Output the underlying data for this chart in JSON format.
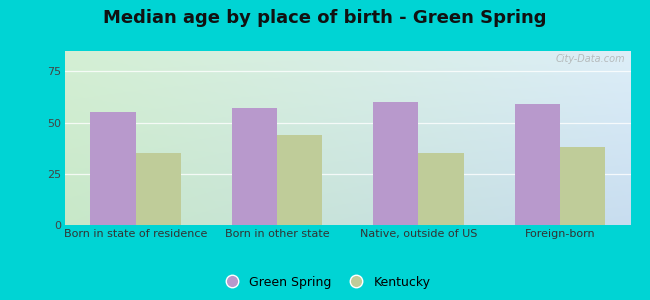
{
  "title": "Median age by place of birth - Green Spring",
  "categories": [
    "Born in state of residence",
    "Born in other state",
    "Native, outside of US",
    "Foreign-born"
  ],
  "green_spring_values": [
    55,
    57,
    60,
    59
  ],
  "kentucky_values": [
    35,
    44,
    35,
    38
  ],
  "bar_color_gs": "#b899cc",
  "bar_color_ky": "#bfcc99",
  "ylim": [
    0,
    85
  ],
  "yticks": [
    0,
    25,
    50,
    75
  ],
  "legend_labels": [
    "Green Spring",
    "Kentucky"
  ],
  "background_outer": "#00d4d4",
  "background_inner_topleft": "#d4efd4",
  "background_inner_topright": "#ddeef8",
  "background_inner_bottomleft": "#c8e8c8",
  "background_inner_bottomright": "#c8ddf0",
  "title_fontsize": 13,
  "tick_fontsize": 8,
  "legend_fontsize": 9,
  "bar_width": 0.32
}
